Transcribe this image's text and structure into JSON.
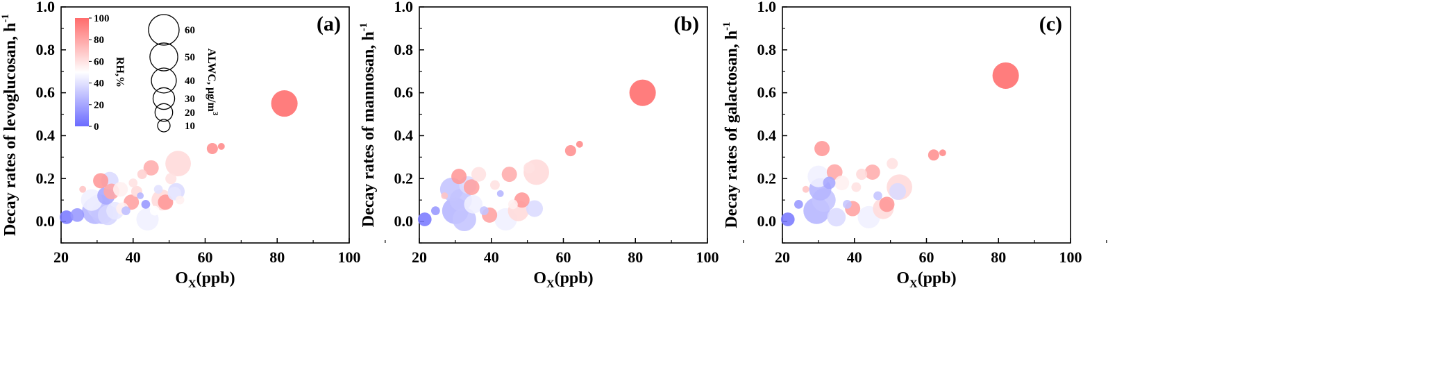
{
  "chart_data": [
    {
      "type": "scatter",
      "panel_label": "(a)",
      "xlabel": "O",
      "xlabel_sub": "X",
      "xlabel_rest": "(ppb)",
      "ylabel": "Decay rates of levoglucosan, h",
      "ylabel_sup": "-1",
      "xlim": [
        20,
        100
      ],
      "ylim": [
        -0.1,
        1.0
      ],
      "xticks": [
        "20",
        "40",
        "60",
        "80",
        "100"
      ],
      "yticks": [
        "0.0",
        "0.2",
        "0.4",
        "0.6",
        "0.8",
        "1.0"
      ],
      "has_legend": true,
      "points": [
        {
          "x": 21.5,
          "y": 0.02,
          "rh": 5,
          "alwc": 12
        },
        {
          "x": 24.5,
          "y": 0.03,
          "rh": 15,
          "alwc": 12
        },
        {
          "x": 26,
          "y": 0.15,
          "rh": 70,
          "alwc": 3
        },
        {
          "x": 28.5,
          "y": 0.1,
          "rh": 45,
          "alwc": 30
        },
        {
          "x": 29.5,
          "y": 0.05,
          "rh": 25,
          "alwc": 45
        },
        {
          "x": 30.5,
          "y": 0.07,
          "rh": 32,
          "alwc": 38
        },
        {
          "x": 31,
          "y": 0.19,
          "rh": 85,
          "alwc": 15
        },
        {
          "x": 31.5,
          "y": 0.04,
          "rh": 30,
          "alwc": 32
        },
        {
          "x": 32.5,
          "y": 0.12,
          "rh": 20,
          "alwc": 20
        },
        {
          "x": 33.5,
          "y": 0.19,
          "rh": 38,
          "alwc": 20
        },
        {
          "x": 33,
          "y": 0.03,
          "rh": 36,
          "alwc": 26
        },
        {
          "x": 34,
          "y": 0.14,
          "rh": 80,
          "alwc": 16
        },
        {
          "x": 35,
          "y": 0.05,
          "rh": 42,
          "alwc": 20
        },
        {
          "x": 36.5,
          "y": 0.15,
          "rh": 55,
          "alwc": 14
        },
        {
          "x": 37,
          "y": 0.06,
          "rh": 55,
          "alwc": 10
        },
        {
          "x": 38,
          "y": 0.05,
          "rh": 28,
          "alwc": 5
        },
        {
          "x": 39.5,
          "y": 0.09,
          "rh": 82,
          "alwc": 15
        },
        {
          "x": 40,
          "y": 0.18,
          "rh": 60,
          "alwc": 5
        },
        {
          "x": 41,
          "y": 0.14,
          "rh": 62,
          "alwc": 8
        },
        {
          "x": 42,
          "y": 0.12,
          "rh": 25,
          "alwc": 3
        },
        {
          "x": 42.5,
          "y": 0.22,
          "rh": 66,
          "alwc": 6
        },
        {
          "x": 43.5,
          "y": 0.08,
          "rh": 15,
          "alwc": 5
        },
        {
          "x": 44,
          "y": 0.01,
          "rh": 45,
          "alwc": 32
        },
        {
          "x": 45,
          "y": 0.25,
          "rh": 78,
          "alwc": 15
        },
        {
          "x": 46,
          "y": 0.05,
          "rh": 50,
          "alwc": 6
        },
        {
          "x": 47,
          "y": 0.15,
          "rh": 40,
          "alwc": 5
        },
        {
          "x": 48,
          "y": 0.1,
          "rh": 62,
          "alwc": 28
        },
        {
          "x": 49,
          "y": 0.09,
          "rh": 85,
          "alwc": 15
        },
        {
          "x": 50.5,
          "y": 0.2,
          "rh": 60,
          "alwc": 8
        },
        {
          "x": 51.5,
          "y": 0.13,
          "rh": 42,
          "alwc": 12
        },
        {
          "x": 52,
          "y": 0.14,
          "rh": 38,
          "alwc": 18
        },
        {
          "x": 52.5,
          "y": 0.27,
          "rh": 63,
          "alwc": 42
        },
        {
          "x": 53,
          "y": 0.1,
          "rh": 55,
          "alwc": 5
        },
        {
          "x": 62,
          "y": 0.34,
          "rh": 88,
          "alwc": 8
        },
        {
          "x": 64.5,
          "y": 0.35,
          "rh": 90,
          "alwc": 3
        },
        {
          "x": 82,
          "y": 0.55,
          "rh": 100,
          "alwc": 45
        }
      ]
    },
    {
      "type": "scatter",
      "panel_label": "(b)",
      "xlabel": "O",
      "xlabel_sub": "X",
      "xlabel_rest": "(ppb)",
      "ylabel": "Decay rates of mannosan, h",
      "ylabel_sup": "-1",
      "xlim": [
        20,
        100
      ],
      "ylim": [
        -0.1,
        1.0
      ],
      "xticks": [
        "20",
        "40",
        "60",
        "80",
        "100"
      ],
      "yticks": [
        "0.0",
        "0.2",
        "0.4",
        "0.6",
        "0.8",
        "1.0"
      ],
      "has_legend": false,
      "points": [
        {
          "x": 21.5,
          "y": 0.01,
          "rh": 5,
          "alwc": 12
        },
        {
          "x": 24.5,
          "y": 0.05,
          "rh": 15,
          "alwc": 5
        },
        {
          "x": 27,
          "y": 0.12,
          "rh": 70,
          "alwc": 3
        },
        {
          "x": 29,
          "y": 0.15,
          "rh": 30,
          "alwc": 35
        },
        {
          "x": 30,
          "y": 0.05,
          "rh": 25,
          "alwc": 45
        },
        {
          "x": 31,
          "y": 0.21,
          "rh": 85,
          "alwc": 15
        },
        {
          "x": 31.5,
          "y": 0.1,
          "rh": 30,
          "alwc": 32
        },
        {
          "x": 32.5,
          "y": 0.01,
          "rh": 30,
          "alwc": 36
        },
        {
          "x": 33.5,
          "y": 0.17,
          "rh": 38,
          "alwc": 20
        },
        {
          "x": 34.5,
          "y": 0.16,
          "rh": 82,
          "alwc": 16
        },
        {
          "x": 35,
          "y": 0.08,
          "rh": 45,
          "alwc": 22
        },
        {
          "x": 36.5,
          "y": 0.22,
          "rh": 60,
          "alwc": 14
        },
        {
          "x": 38,
          "y": 0.05,
          "rh": 30,
          "alwc": 5
        },
        {
          "x": 39.5,
          "y": 0.03,
          "rh": 82,
          "alwc": 15
        },
        {
          "x": 41,
          "y": 0.17,
          "rh": 60,
          "alwc": 6
        },
        {
          "x": 42.5,
          "y": 0.13,
          "rh": 25,
          "alwc": 3
        },
        {
          "x": 44,
          "y": 0.01,
          "rh": 45,
          "alwc": 32
        },
        {
          "x": 45,
          "y": 0.22,
          "rh": 78,
          "alwc": 15
        },
        {
          "x": 46,
          "y": 0.08,
          "rh": 55,
          "alwc": 6
        },
        {
          "x": 47.5,
          "y": 0.05,
          "rh": 62,
          "alwc": 28
        },
        {
          "x": 48.5,
          "y": 0.1,
          "rh": 85,
          "alwc": 15
        },
        {
          "x": 50.5,
          "y": 0.25,
          "rh": 60,
          "alwc": 8
        },
        {
          "x": 52,
          "y": 0.06,
          "rh": 38,
          "alwc": 18
        },
        {
          "x": 52.5,
          "y": 0.23,
          "rh": 63,
          "alwc": 42
        },
        {
          "x": 62,
          "y": 0.33,
          "rh": 88,
          "alwc": 8
        },
        {
          "x": 64.5,
          "y": 0.36,
          "rh": 90,
          "alwc": 3
        },
        {
          "x": 82,
          "y": 0.6,
          "rh": 100,
          "alwc": 45
        }
      ]
    },
    {
      "type": "scatter",
      "panel_label": "(c)",
      "xlabel": "O",
      "xlabel_sub": "X",
      "xlabel_rest": "(ppb)",
      "ylabel": "Decay rates of galactosan, h",
      "ylabel_sup": "-1",
      "xlim": [
        20,
        100
      ],
      "ylim": [
        -0.1,
        1.0
      ],
      "xticks": [
        "20",
        "40",
        "60",
        "80",
        "100"
      ],
      "yticks": [
        "0.0",
        "0.2",
        "0.4",
        "0.6",
        "0.8",
        "1.0"
      ],
      "has_legend": false,
      "points": [
        {
          "x": 21.5,
          "y": 0.01,
          "rh": 5,
          "alwc": 12
        },
        {
          "x": 24.5,
          "y": 0.08,
          "rh": 15,
          "alwc": 5
        },
        {
          "x": 26.5,
          "y": 0.15,
          "rh": 70,
          "alwc": 3
        },
        {
          "x": 29.5,
          "y": 0.05,
          "rh": 25,
          "alwc": 45
        },
        {
          "x": 30,
          "y": 0.21,
          "rh": 45,
          "alwc": 30
        },
        {
          "x": 30.5,
          "y": 0.15,
          "rh": 25,
          "alwc": 32
        },
        {
          "x": 31,
          "y": 0.34,
          "rh": 85,
          "alwc": 15
        },
        {
          "x": 31.5,
          "y": 0.1,
          "rh": 30,
          "alwc": 36
        },
        {
          "x": 33,
          "y": 0.18,
          "rh": 20,
          "alwc": 10
        },
        {
          "x": 34.5,
          "y": 0.23,
          "rh": 80,
          "alwc": 16
        },
        {
          "x": 35,
          "y": 0.02,
          "rh": 38,
          "alwc": 22
        },
        {
          "x": 36.5,
          "y": 0.18,
          "rh": 55,
          "alwc": 14
        },
        {
          "x": 38,
          "y": 0.08,
          "rh": 30,
          "alwc": 5
        },
        {
          "x": 39.5,
          "y": 0.06,
          "rh": 82,
          "alwc": 15
        },
        {
          "x": 40.5,
          "y": 0.16,
          "rh": 60,
          "alwc": 6
        },
        {
          "x": 42,
          "y": 0.22,
          "rh": 62,
          "alwc": 8
        },
        {
          "x": 44,
          "y": 0.02,
          "rh": 45,
          "alwc": 32
        },
        {
          "x": 45,
          "y": 0.23,
          "rh": 78,
          "alwc": 15
        },
        {
          "x": 46.5,
          "y": 0.12,
          "rh": 30,
          "alwc": 5
        },
        {
          "x": 48,
          "y": 0.06,
          "rh": 62,
          "alwc": 28
        },
        {
          "x": 49,
          "y": 0.08,
          "rh": 85,
          "alwc": 15
        },
        {
          "x": 50.5,
          "y": 0.27,
          "rh": 60,
          "alwc": 8
        },
        {
          "x": 52,
          "y": 0.14,
          "rh": 38,
          "alwc": 18
        },
        {
          "x": 52.5,
          "y": 0.16,
          "rh": 63,
          "alwc": 42
        },
        {
          "x": 62,
          "y": 0.31,
          "rh": 88,
          "alwc": 8
        },
        {
          "x": 64.5,
          "y": 0.32,
          "rh": 90,
          "alwc": 3
        },
        {
          "x": 82,
          "y": 0.68,
          "rh": 100,
          "alwc": 45
        }
      ]
    }
  ],
  "rh_legend": {
    "title": "RH,%",
    "range": [
      0,
      100
    ],
    "ticks": [
      "0",
      "20",
      "40",
      "60",
      "80",
      "100"
    ],
    "colors": {
      "low": "#6b6bff",
      "mid": "#ffffff",
      "high": "#ff6b6b"
    }
  },
  "alwc_legend": {
    "title": "ALWC, μg/m",
    "title_sup": "3",
    "sizes": [
      60,
      50,
      40,
      30,
      20,
      10
    ],
    "labels": [
      "60",
      "50",
      "40",
      "30",
      "20",
      "10"
    ]
  }
}
